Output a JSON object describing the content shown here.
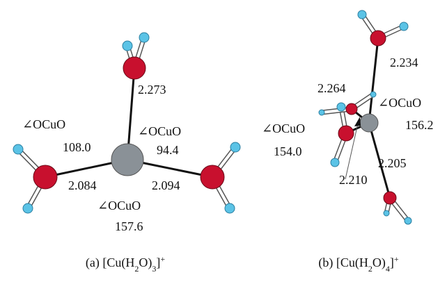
{
  "panel_a": {
    "labels": [
      "2.273",
      "∠OCuO",
      "108.0",
      "∠OCuO",
      "94.4",
      "2.084",
      "2.094",
      "∠OCuO",
      "157.6"
    ],
    "caption": [
      "(a) [Cu(H",
      "2",
      "O)",
      "3",
      "]",
      "+"
    ]
  },
  "panel_b": {
    "labels": [
      "2.234",
      "2.264",
      "∠OCuO",
      "156.2",
      "∠OCuO",
      "154.0",
      "2.205",
      "2.210"
    ],
    "caption": [
      "(b) [Cu(H",
      "2",
      "O)",
      "4",
      "]",
      "+"
    ]
  }
}
